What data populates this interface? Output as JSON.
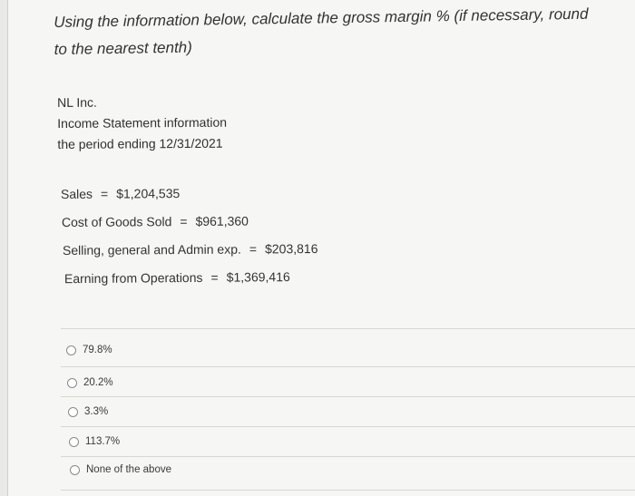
{
  "question": {
    "text": "Using the information below, calculate the gross margin % (if necessary, round to the nearest tenth)"
  },
  "company": {
    "name": "NL Inc.",
    "statement": "Income Statement information",
    "period": "the period ending 12/31/2021"
  },
  "financials": [
    {
      "label": "Sales",
      "eq": "=",
      "value": "$1,204,535"
    },
    {
      "label": "Cost of Goods Sold",
      "eq": "=",
      "value": "$961,360"
    },
    {
      "label": "Selling, general and Admin exp.",
      "eq": "=",
      "value": "$203,816"
    },
    {
      "label": "Earning from Operations",
      "eq": "=",
      "value": "$1,369,416"
    }
  ],
  "options": [
    {
      "label": "79.8%"
    },
    {
      "label": "20.2%"
    },
    {
      "label": "3.3%"
    },
    {
      "label": "113.7%"
    },
    {
      "label": "None of the above"
    }
  ]
}
